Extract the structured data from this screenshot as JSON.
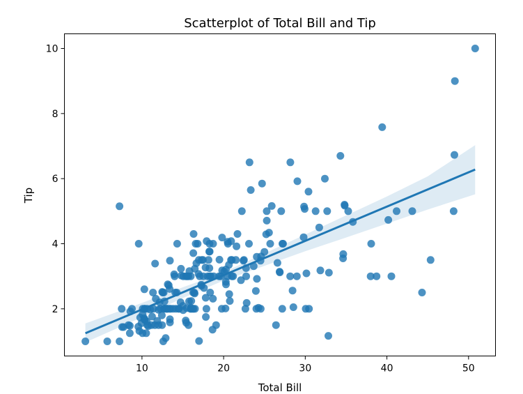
{
  "chart_data": {
    "type": "scatter",
    "title": "Scatterplot of Total Bill and Tip",
    "xlabel": "Total Bill",
    "ylabel": "Tip",
    "xlim": [
      0.5,
      53.3
    ],
    "ylim": [
      0.55,
      10.45
    ],
    "xticks": [
      10,
      20,
      30,
      40,
      50
    ],
    "yticks": [
      2,
      4,
      6,
      8,
      10
    ],
    "grid": false,
    "point_color": "#1f77b4",
    "regression": {
      "x0": 3.07,
      "y0": 1.25,
      "x1": 50.81,
      "y1": 6.28,
      "ci_band": [
        [
          3.07,
          0.97,
          1.55
        ],
        [
          10.0,
          1.74,
          2.18
        ],
        [
          15.0,
          2.33,
          2.66
        ],
        [
          19.8,
          2.85,
          3.1
        ],
        [
          25.0,
          3.32,
          3.7
        ],
        [
          30.0,
          3.77,
          4.28
        ],
        [
          35.0,
          4.19,
          4.87
        ],
        [
          40.0,
          4.62,
          5.45
        ],
        [
          45.0,
          5.05,
          6.07
        ],
        [
          50.81,
          5.52,
          7.03
        ]
      ]
    },
    "points": [
      [
        3.07,
        1.0
      ],
      [
        5.75,
        1.0
      ],
      [
        7.25,
        1.0
      ],
      [
        7.25,
        5.15
      ],
      [
        7.51,
        2.0
      ],
      [
        7.56,
        1.44
      ],
      [
        7.74,
        1.44
      ],
      [
        8.35,
        1.5
      ],
      [
        8.51,
        1.25
      ],
      [
        8.52,
        1.48
      ],
      [
        8.58,
        1.92
      ],
      [
        8.77,
        2.0
      ],
      [
        9.55,
        1.45
      ],
      [
        9.6,
        4.0
      ],
      [
        9.68,
        1.32
      ],
      [
        9.78,
        1.73
      ],
      [
        9.94,
        1.56
      ],
      [
        10.07,
        1.25
      ],
      [
        10.07,
        1.83
      ],
      [
        10.09,
        2.0
      ],
      [
        10.27,
        1.71
      ],
      [
        10.29,
        2.6
      ],
      [
        10.33,
        1.67
      ],
      [
        10.33,
        2.0
      ],
      [
        10.34,
        1.66
      ],
      [
        10.34,
        2.0
      ],
      [
        10.51,
        1.25
      ],
      [
        10.59,
        1.61
      ],
      [
        10.63,
        2.0
      ],
      [
        10.65,
        1.5
      ],
      [
        10.77,
        1.47
      ],
      [
        11.02,
        1.98
      ],
      [
        11.17,
        1.5
      ],
      [
        11.24,
        1.76
      ],
      [
        11.35,
        2.5
      ],
      [
        11.38,
        2.0
      ],
      [
        11.59,
        1.5
      ],
      [
        11.61,
        3.39
      ],
      [
        11.69,
        2.31
      ],
      [
        11.87,
        1.63
      ],
      [
        12.02,
        1.97
      ],
      [
        12.03,
        1.5
      ],
      [
        12.16,
        2.2
      ],
      [
        12.26,
        2.0
      ],
      [
        12.43,
        1.8
      ],
      [
        12.46,
        1.5
      ],
      [
        12.48,
        2.52
      ],
      [
        12.54,
        2.5
      ],
      [
        12.6,
        1.0
      ],
      [
        12.66,
        2.5
      ],
      [
        12.69,
        2.0
      ],
      [
        12.74,
        2.01
      ],
      [
        12.76,
        2.23
      ],
      [
        12.9,
        1.1
      ],
      [
        13.0,
        2.0
      ],
      [
        13.03,
        2.0
      ],
      [
        13.13,
        2.0
      ],
      [
        13.16,
        2.75
      ],
      [
        13.28,
        2.72
      ],
      [
        13.37,
        2.0
      ],
      [
        13.39,
        2.61
      ],
      [
        13.42,
        3.48
      ],
      [
        13.42,
        1.58
      ],
      [
        13.42,
        1.68
      ],
      [
        13.51,
        2.0
      ],
      [
        13.81,
        2.0
      ],
      [
        13.94,
        3.06
      ],
      [
        14.0,
        3.0
      ],
      [
        14.07,
        2.5
      ],
      [
        14.15,
        2.0
      ],
      [
        14.26,
        2.5
      ],
      [
        14.31,
        4.0
      ],
      [
        14.48,
        2.0
      ],
      [
        14.52,
        2.0
      ],
      [
        14.73,
        2.2
      ],
      [
        14.78,
        3.23
      ],
      [
        14.83,
        3.02
      ],
      [
        15.01,
        2.09
      ],
      [
        15.04,
        1.96
      ],
      [
        15.06,
        3.0
      ],
      [
        15.36,
        1.64
      ],
      [
        15.38,
        3.0
      ],
      [
        15.42,
        1.57
      ],
      [
        15.48,
        2.02
      ],
      [
        15.53,
        3.0
      ],
      [
        15.69,
        1.5
      ],
      [
        15.69,
        3.0
      ],
      [
        15.77,
        2.23
      ],
      [
        15.81,
        3.16
      ],
      [
        15.95,
        2.0
      ],
      [
        15.98,
        2.03
      ],
      [
        15.98,
        3.0
      ],
      [
        16.0,
        2.0
      ],
      [
        16.04,
        2.24
      ],
      [
        16.21,
        2.0
      ],
      [
        16.27,
        2.5
      ],
      [
        16.29,
        3.71
      ],
      [
        16.31,
        2.0
      ],
      [
        16.32,
        4.3
      ],
      [
        16.4,
        2.5
      ],
      [
        16.45,
        2.47
      ],
      [
        16.47,
        3.23
      ],
      [
        16.49,
        2.0
      ],
      [
        16.58,
        4.0
      ],
      [
        16.66,
        3.4
      ],
      [
        16.82,
        4.0
      ],
      [
        16.93,
        3.07
      ],
      [
        16.97,
        3.5
      ],
      [
        16.99,
        1.01
      ],
      [
        17.07,
        3.0
      ],
      [
        17.26,
        2.74
      ],
      [
        17.29,
        2.71
      ],
      [
        17.31,
        3.5
      ],
      [
        17.47,
        3.5
      ],
      [
        17.51,
        3.0
      ],
      [
        17.59,
        2.64
      ],
      [
        17.78,
        3.27
      ],
      [
        17.81,
        2.34
      ],
      [
        17.82,
        1.75
      ],
      [
        17.89,
        2.0
      ],
      [
        17.92,
        4.08
      ],
      [
        18.04,
        3.0
      ],
      [
        18.15,
        3.5
      ],
      [
        18.24,
        3.76
      ],
      [
        18.26,
        3.25
      ],
      [
        18.28,
        4.0
      ],
      [
        18.29,
        3.76
      ],
      [
        18.29,
        3.0
      ],
      [
        18.35,
        2.5
      ],
      [
        18.43,
        3.0
      ],
      [
        18.64,
        1.36
      ],
      [
        18.69,
        2.31
      ],
      [
        18.71,
        4.0
      ],
      [
        18.78,
        3.0
      ],
      [
        19.08,
        1.5
      ],
      [
        19.44,
        3.0
      ],
      [
        19.49,
        3.51
      ],
      [
        19.65,
        3.0
      ],
      [
        19.77,
        2.0
      ],
      [
        19.81,
        4.19
      ],
      [
        19.82,
        3.18
      ],
      [
        20.08,
        3.15
      ],
      [
        20.23,
        2.01
      ],
      [
        20.27,
        2.83
      ],
      [
        20.29,
        2.75
      ],
      [
        20.29,
        3.21
      ],
      [
        20.45,
        3.0
      ],
      [
        20.49,
        4.06
      ],
      [
        20.53,
        4.0
      ],
      [
        20.65,
        3.35
      ],
      [
        20.69,
        2.45
      ],
      [
        20.76,
        2.24
      ],
      [
        20.9,
        3.5
      ],
      [
        20.92,
        4.08
      ],
      [
        21.01,
        3.5
      ],
      [
        21.01,
        3.0
      ],
      [
        21.16,
        3.0
      ],
      [
        21.5,
        3.5
      ],
      [
        21.58,
        3.92
      ],
      [
        21.7,
        4.3
      ],
      [
        22.12,
        2.88
      ],
      [
        22.23,
        5.0
      ],
      [
        22.42,
        3.48
      ],
      [
        22.49,
        3.5
      ],
      [
        22.67,
        2.0
      ],
      [
        22.75,
        3.25
      ],
      [
        22.76,
        3.0
      ],
      [
        22.82,
        2.18
      ],
      [
        23.1,
        4.0
      ],
      [
        23.17,
        6.5
      ],
      [
        23.33,
        5.65
      ],
      [
        23.68,
        3.31
      ],
      [
        23.95,
        2.55
      ],
      [
        24.01,
        2.0
      ],
      [
        24.06,
        3.6
      ],
      [
        24.08,
        2.92
      ],
      [
        24.27,
        2.03
      ],
      [
        24.52,
        3.48
      ],
      [
        24.55,
        2.0
      ],
      [
        24.59,
        3.61
      ],
      [
        24.71,
        5.85
      ],
      [
        25.0,
        3.75
      ],
      [
        25.21,
        4.29
      ],
      [
        25.28,
        5.0
      ],
      [
        25.29,
        4.71
      ],
      [
        25.56,
        4.34
      ],
      [
        25.71,
        4.0
      ],
      [
        25.89,
        5.16
      ],
      [
        26.41,
        1.5
      ],
      [
        26.59,
        3.41
      ],
      [
        26.86,
        3.14
      ],
      [
        26.88,
        3.12
      ],
      [
        27.05,
        5.0
      ],
      [
        27.18,
        2.0
      ],
      [
        27.2,
        4.0
      ],
      [
        27.28,
        4.0
      ],
      [
        28.15,
        3.0
      ],
      [
        28.17,
        6.5
      ],
      [
        28.44,
        2.56
      ],
      [
        28.55,
        2.05
      ],
      [
        28.97,
        3.0
      ],
      [
        29.03,
        5.92
      ],
      [
        29.8,
        4.2
      ],
      [
        29.85,
        5.14
      ],
      [
        29.93,
        5.07
      ],
      [
        30.06,
        2.0
      ],
      [
        30.14,
        3.09
      ],
      [
        30.4,
        5.6
      ],
      [
        30.46,
        2.0
      ],
      [
        31.27,
        5.0
      ],
      [
        31.71,
        4.5
      ],
      [
        31.85,
        3.18
      ],
      [
        32.4,
        6.0
      ],
      [
        32.68,
        5.0
      ],
      [
        32.83,
        1.17
      ],
      [
        32.9,
        3.11
      ],
      [
        34.3,
        6.7
      ],
      [
        34.63,
        3.55
      ],
      [
        34.65,
        3.68
      ],
      [
        34.81,
        5.2
      ],
      [
        34.83,
        5.17
      ],
      [
        35.26,
        5.0
      ],
      [
        35.83,
        4.67
      ],
      [
        38.01,
        3.0
      ],
      [
        38.07,
        4.0
      ],
      [
        38.73,
        3.0
      ],
      [
        39.42,
        7.58
      ],
      [
        40.17,
        4.73
      ],
      [
        40.55,
        3.0
      ],
      [
        41.19,
        5.0
      ],
      [
        43.11,
        5.0
      ],
      [
        44.3,
        2.5
      ],
      [
        45.35,
        3.5
      ],
      [
        48.17,
        5.0
      ],
      [
        48.27,
        6.73
      ],
      [
        48.33,
        9.0
      ],
      [
        50.81,
        10.0
      ]
    ]
  }
}
